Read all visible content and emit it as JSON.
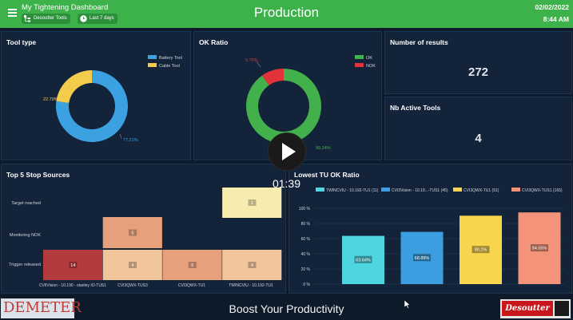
{
  "header": {
    "app_title": "My Tightening Dashboard",
    "chip_tools": "Desoutter Tools",
    "chip_range": "Last 7 days",
    "page_title": "Production",
    "date": "02/02/2022",
    "time": "8:44 AM"
  },
  "tool_type": {
    "title": "Tool type",
    "legend": [
      "Battery Tool",
      "Cable Tool"
    ],
    "values": [
      77.21,
      22.79
    ],
    "labels": [
      "77.21%",
      "22.79%"
    ],
    "colors": [
      "#3ba1e0",
      "#f4cc4c"
    ]
  },
  "ok_ratio": {
    "title": "OK Ratio",
    "legend": [
      "OK",
      "NOK"
    ],
    "values": [
      90.24,
      9.76
    ],
    "labels": [
      "90.24%",
      "9.76%"
    ],
    "colors": [
      "#43b14b",
      "#e2323a"
    ]
  },
  "results": {
    "title": "Number of results",
    "value": "272"
  },
  "active_tools": {
    "title": "Nb Active Tools",
    "value": "4"
  },
  "stop_sources": {
    "title": "Top 5 Stop Sources",
    "rows": [
      "Target reached",
      "Monitoring NOK",
      "Trigger released"
    ],
    "cols": [
      "CVIlVision - 10.190 - stanley IO-TUS1",
      "CVI3QWX-TUS3",
      "CVI3QWX-TU1",
      "TWINCVIU - 10.192-TU1"
    ],
    "cells": [
      {
        "row": 0,
        "col": 3,
        "value": "1",
        "color": "#f6ecb0"
      },
      {
        "row": 1,
        "col": 1,
        "value": "5",
        "color": "#e6a17c"
      },
      {
        "row": 2,
        "col": 0,
        "value": "14",
        "color": "#b33a3d"
      },
      {
        "row": 2,
        "col": 1,
        "value": "4",
        "color": "#f1c59c"
      },
      {
        "row": 2,
        "col": 2,
        "value": "5",
        "color": "#e6a17c"
      },
      {
        "row": 2,
        "col": 3,
        "value": "4",
        "color": "#f1c59c"
      }
    ]
  },
  "chart_data": {
    "type": "bar",
    "title": "Lowest TU OK Ratio",
    "categories": [
      "TWINCVIU - 10.192-TU1 (11)",
      "CVI3Vision - 10.19...-TUS1 (45)",
      "CVI3QWX-TU1 (51)",
      "CVI3QWX-TUS1 (165)"
    ],
    "values": [
      63.64,
      68.89,
      90.2,
      94.55
    ],
    "value_labels": [
      "63.64%",
      "68.89%",
      "90.2%",
      "94.55%"
    ],
    "colors": [
      "#4dd6e0",
      "#3a9ee0",
      "#f7d54c",
      "#f3937a"
    ],
    "ylim": [
      0,
      100
    ],
    "yticks": [
      "0 %",
      "20 %",
      "40 %",
      "60 %",
      "80 %",
      "100 %"
    ]
  },
  "footer": {
    "brand_left": "DEMETER",
    "tagline": "Boost Your Productivity",
    "brand_right": "Desoutter"
  },
  "video": {
    "time": "01:39"
  }
}
